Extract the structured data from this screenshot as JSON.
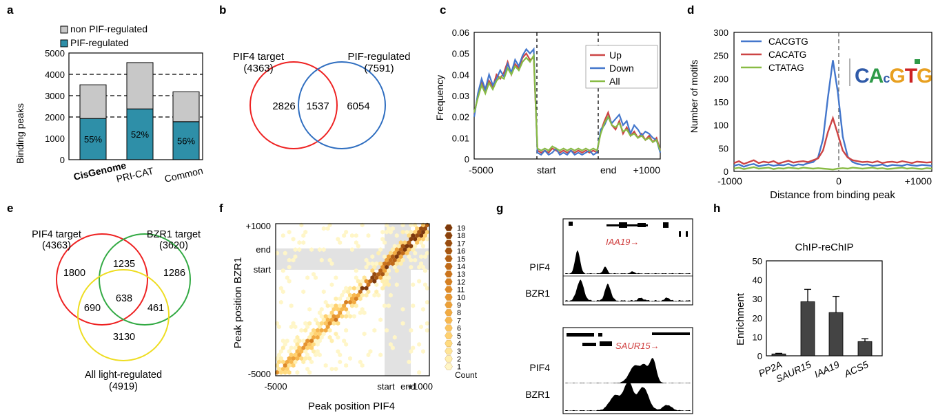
{
  "panels": {
    "a": {
      "letter": "a",
      "legend": [
        "non PIF-regulated",
        "PIF-regulated"
      ],
      "ylabel": "Binding peaks",
      "yticks": [
        "0",
        "1000",
        "2000",
        "3000",
        "4000",
        "5000"
      ],
      "categories": [
        "CisGenome",
        "PRI-CAT",
        "Common"
      ],
      "bar_labels": [
        "55%",
        "52%",
        "56%"
      ]
    },
    "b": {
      "letter": "b",
      "left_label": "PIF4 target",
      "left_count": "(4363)",
      "right_label": "PIF-regulated",
      "right_count": "(7591)",
      "left_only": "2826",
      "overlap": "1537",
      "right_only": "6054"
    },
    "c": {
      "letter": "c",
      "ylabel": "Frequency",
      "yticks": [
        "0",
        "0.01",
        "0.02",
        "0.03",
        "0.04",
        "0.05",
        "0.06"
      ],
      "xticks": [
        "-5000",
        "start",
        "end",
        "+1000"
      ],
      "legend": [
        "Up",
        "Down",
        "All"
      ]
    },
    "d": {
      "letter": "d",
      "ylabel": "Number of motifs",
      "xlabel": "Distance from binding peak",
      "yticks": [
        "0",
        "50",
        "100",
        "150",
        "200",
        "250",
        "300"
      ],
      "xticks": [
        "-1000",
        "0",
        "+1000"
      ],
      "legend": [
        "CACGTG",
        "CACATG",
        "CTATAG"
      ],
      "logo": "CACGTG"
    },
    "e": {
      "letter": "e",
      "a_label": "PIF4 target",
      "a_count": "(4363)",
      "b_label": "BZR1 target",
      "b_count": "(3620)",
      "c_label": "All light-regulated",
      "c_count": "(4919)",
      "a_only": "1800",
      "ab": "1235",
      "b_only": "1286",
      "ac": "690",
      "abc": "638",
      "bc": "461",
      "c_only": "3130"
    },
    "f": {
      "letter": "f",
      "ylabel": "Peak position BZR1",
      "xlabel": "Peak position PIF4",
      "yticks": [
        "+1000",
        "end",
        "start",
        "-5000"
      ],
      "xticks": [
        "-5000",
        "start",
        "end",
        "+1000"
      ],
      "colorbar": [
        "19",
        "18",
        "17",
        "16",
        "15",
        "14",
        "13",
        "12",
        "11",
        "10",
        "9",
        "8",
        "7",
        "6",
        "5",
        "4",
        "3",
        "2",
        "1"
      ],
      "colorbar_title": "Count"
    },
    "g": {
      "letter": "g",
      "gene_top": "IAA19→",
      "gene_bottom": "SAUR15→",
      "tracks": [
        "PIF4",
        "BZR1",
        "PIF4",
        "BZR1"
      ]
    },
    "h": {
      "letter": "h",
      "title": "ChIP-reChIP",
      "ylabel": "Enrichment",
      "yticks": [
        "0",
        "10",
        "20",
        "30",
        "40",
        "50"
      ],
      "categories": [
        "PP2A",
        "SAUR15",
        "IAA19",
        "ACS5"
      ]
    }
  },
  "chart_data": [
    {
      "panel": "a",
      "type": "bar",
      "stacked": true,
      "categories": [
        "CisGenome",
        "PRI-CAT",
        "Common"
      ],
      "series": [
        {
          "name": "PIF-regulated",
          "values": [
            1930,
            2380,
            1780
          ],
          "color": "#2e8fa8"
        },
        {
          "name": "non PIF-regulated",
          "values": [
            1580,
            2170,
            1400
          ],
          "color": "#c8c8c8"
        }
      ],
      "ylabel": "Binding peaks",
      "ylim": [
        0,
        5000
      ],
      "gridlines": [
        2000,
        3000,
        4000
      ]
    },
    {
      "panel": "c",
      "type": "line",
      "ylabel": "Frequency",
      "ylim": [
        0,
        0.06
      ],
      "x": [
        0,
        2,
        4,
        6,
        8,
        10,
        12,
        14,
        16,
        18,
        20,
        22,
        24,
        26,
        28,
        30,
        32,
        34,
        36,
        38,
        40,
        42,
        44,
        46,
        48,
        50,
        52,
        54,
        56,
        58,
        60,
        62,
        64,
        66,
        68,
        70,
        72,
        74,
        76,
        78,
        80,
        82,
        84,
        86,
        88,
        90,
        92,
        94,
        96,
        98,
        100
      ],
      "series": [
        {
          "name": "Up",
          "color": "#cc4444",
          "values": [
            0.021,
            0.03,
            0.036,
            0.032,
            0.037,
            0.034,
            0.04,
            0.038,
            0.041,
            0.046,
            0.04,
            0.045,
            0.043,
            0.048,
            0.05,
            0.047,
            0.048,
            0.004,
            0.003,
            0.004,
            0.003,
            0.005,
            0.004,
            0.003,
            0.004,
            0.003,
            0.004,
            0.003,
            0.004,
            0.003,
            0.004,
            0.003,
            0.004,
            0.003,
            0.013,
            0.018,
            0.022,
            0.016,
            0.014,
            0.018,
            0.012,
            0.015,
            0.011,
            0.013,
            0.01,
            0.012,
            0.009,
            0.011,
            0.008,
            0.01,
            0.004
          ]
        },
        {
          "name": "Down",
          "color": "#4477cc",
          "values": [
            0.02,
            0.031,
            0.038,
            0.033,
            0.04,
            0.035,
            0.038,
            0.042,
            0.039,
            0.045,
            0.041,
            0.047,
            0.044,
            0.049,
            0.052,
            0.05,
            0.052,
            0.003,
            0.002,
            0.004,
            0.002,
            0.003,
            0.005,
            0.002,
            0.003,
            0.002,
            0.004,
            0.002,
            0.003,
            0.002,
            0.003,
            0.004,
            0.002,
            0.003,
            0.014,
            0.016,
            0.02,
            0.017,
            0.019,
            0.021,
            0.016,
            0.018,
            0.012,
            0.016,
            0.014,
            0.011,
            0.013,
            0.012,
            0.01,
            0.009,
            0.003
          ]
        },
        {
          "name": "All",
          "color": "#88bb44",
          "values": [
            0.022,
            0.029,
            0.035,
            0.031,
            0.036,
            0.033,
            0.037,
            0.039,
            0.038,
            0.043,
            0.04,
            0.044,
            0.042,
            0.046,
            0.048,
            0.046,
            0.049,
            0.005,
            0.004,
            0.005,
            0.004,
            0.006,
            0.005,
            0.004,
            0.005,
            0.004,
            0.005,
            0.004,
            0.005,
            0.004,
            0.005,
            0.004,
            0.005,
            0.004,
            0.012,
            0.017,
            0.02,
            0.016,
            0.015,
            0.017,
            0.013,
            0.014,
            0.011,
            0.012,
            0.01,
            0.011,
            0.009,
            0.01,
            0.008,
            0.009,
            0.004
          ]
        }
      ]
    },
    {
      "panel": "d",
      "type": "line",
      "ylabel": "Number of motifs",
      "xlabel": "Distance from binding peak",
      "ylim": [
        0,
        300
      ],
      "xlim": [
        -1000,
        1000
      ],
      "x": [
        -1000,
        -950,
        -900,
        -850,
        -800,
        -750,
        -700,
        -650,
        -600,
        -550,
        -500,
        -450,
        -400,
        -350,
        -300,
        -250,
        -200,
        -150,
        -100,
        -50,
        0,
        50,
        100,
        150,
        200,
        250,
        300,
        350,
        400,
        450,
        500,
        550,
        600,
        650,
        700,
        750,
        800,
        850,
        900,
        950,
        1000
      ],
      "series": [
        {
          "name": "CACGTG",
          "color": "#4477cc",
          "values": [
            12,
            15,
            10,
            14,
            16,
            11,
            13,
            15,
            12,
            14,
            13,
            16,
            12,
            15,
            14,
            18,
            20,
            30,
            70,
            160,
            240,
            170,
            75,
            32,
            20,
            16,
            14,
            15,
            12,
            13,
            15,
            11,
            14,
            13,
            12,
            15,
            13,
            12,
            14,
            13,
            12
          ]
        },
        {
          "name": "CACATG",
          "color": "#cc4444",
          "values": [
            18,
            22,
            16,
            20,
            24,
            18,
            21,
            19,
            22,
            17,
            20,
            23,
            19,
            21,
            22,
            20,
            24,
            28,
            45,
            85,
            115,
            80,
            45,
            30,
            24,
            22,
            20,
            21,
            19,
            22,
            18,
            20,
            21,
            19,
            22,
            20,
            18,
            21,
            20,
            19,
            20
          ]
        },
        {
          "name": "CTATAG",
          "color": "#88bb44",
          "values": [
            6,
            8,
            5,
            7,
            9,
            6,
            7,
            8,
            5,
            7,
            6,
            8,
            7,
            6,
            8,
            7,
            6,
            7,
            6,
            5,
            4,
            6,
            7,
            6,
            8,
            7,
            6,
            7,
            8,
            6,
            7,
            5,
            6,
            7,
            8,
            6,
            7,
            6,
            5,
            7,
            6
          ]
        }
      ]
    },
    {
      "panel": "h",
      "type": "bar",
      "title": "ChIP-reChIP",
      "ylabel": "Enrichment",
      "ylim": [
        0,
        50
      ],
      "categories": [
        "PP2A",
        "SAUR15",
        "IAA19",
        "ACS5"
      ],
      "values": [
        1,
        28.5,
        22.8,
        7.5
      ],
      "errors": [
        0.3,
        6.5,
        8.5,
        1.5
      ]
    }
  ]
}
